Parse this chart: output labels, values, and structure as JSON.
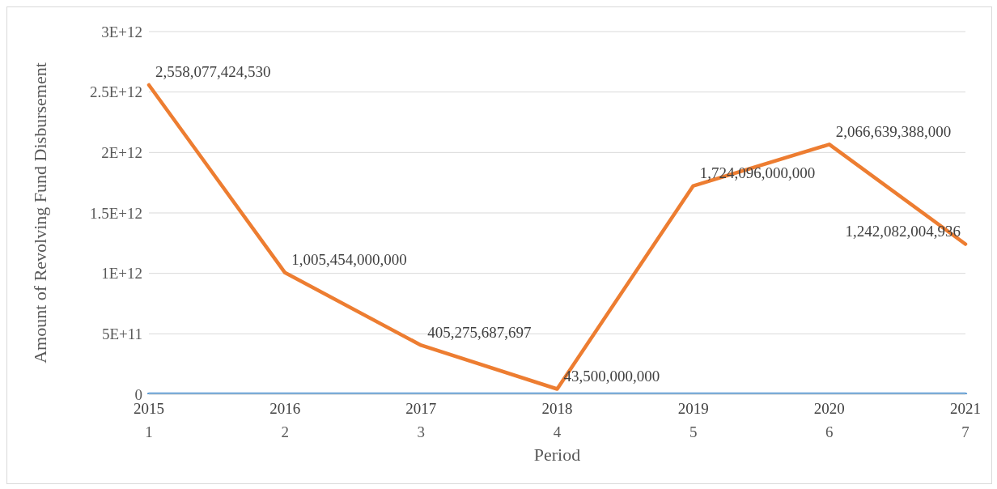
{
  "chart_data": {
    "type": "line",
    "xlabel": "Period",
    "ylabel": "Amount of Revolving Fund Disbursement",
    "categories": [
      "1",
      "2",
      "3",
      "4",
      "5",
      "6",
      "7"
    ],
    "series": [
      {
        "color": "#5b9bd5",
        "values": [
          2015,
          2016,
          2017,
          2018,
          2019,
          2020,
          2021
        ],
        "value_labels": [
          "2015",
          "2016",
          "2017",
          "2018",
          "2019",
          "2020",
          "2021"
        ]
      },
      {
        "color": "#ed7d31",
        "values": [
          2558077424530,
          1005454000000,
          405275687697,
          43500000000,
          1724096000000,
          2066639388000,
          1242082004936
        ],
        "value_labels": [
          "2,558,077,424,530",
          "1,005,454,000,000",
          "405,275,687,697",
          "43,500,000,000",
          "1,724,096,000,000",
          "2,066,639,388,000",
          "1,242,082,004,936"
        ]
      }
    ],
    "ylim": [
      0,
      3000000000000
    ],
    "yticks": [
      0,
      {
        "value": 500000000000,
        "label": "5E+11"
      },
      {
        "value": 1000000000000,
        "label": "1E+12"
      },
      {
        "value": 1500000000000,
        "label": "1.5E+12"
      },
      {
        "value": 2000000000000,
        "label": "2E+12"
      },
      {
        "value": 2500000000000,
        "label": "2.5E+12"
      },
      {
        "value": 3000000000000,
        "label": "3E+12"
      }
    ],
    "grid": "y",
    "legend": false,
    "marker": "none",
    "line_style": "solid"
  }
}
